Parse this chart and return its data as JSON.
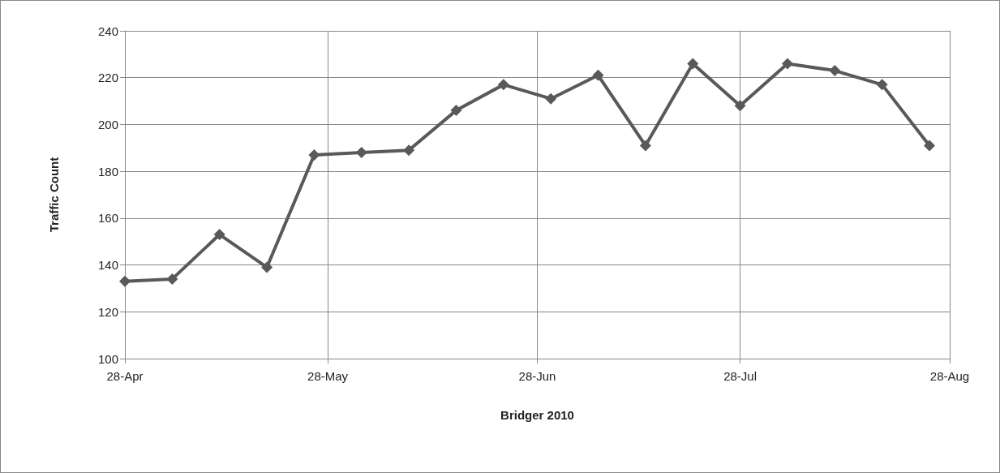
{
  "chart_data": {
    "type": "line",
    "xlabel": "Bridger 2010",
    "ylabel": "Traffic Count",
    "x": [
      "2010-04-28",
      "2010-05-05",
      "2010-05-12",
      "2010-05-19",
      "2010-05-26",
      "2010-06-02",
      "2010-06-09",
      "2010-06-16",
      "2010-06-23",
      "2010-06-30",
      "2010-07-07",
      "2010-07-14",
      "2010-07-21",
      "2010-07-28",
      "2010-08-04",
      "2010-08-11",
      "2010-08-18",
      "2010-08-25"
    ],
    "series": [
      {
        "color": "#595959",
        "values": [
          133,
          134,
          153,
          139,
          187,
          188,
          189,
          206,
          217,
          211,
          221,
          191,
          226,
          208,
          226,
          223,
          217,
          191
        ]
      }
    ],
    "xlim": [
      "2010-04-28",
      "2010-08-28"
    ],
    "xticks": [
      {
        "value": "2010-04-28",
        "label": "28-Apr"
      },
      {
        "value": "2010-05-28",
        "label": "28-May"
      },
      {
        "value": "2010-06-28",
        "label": "28-Jun"
      },
      {
        "value": "2010-07-28",
        "label": "28-Jul"
      },
      {
        "value": "2010-08-28",
        "label": "28-Aug"
      }
    ],
    "ylim": [
      100,
      240
    ],
    "yticks": [
      100,
      120,
      140,
      160,
      180,
      200,
      220,
      240
    ],
    "grid": true,
    "marker": "diamond",
    "line_style": "solid"
  }
}
